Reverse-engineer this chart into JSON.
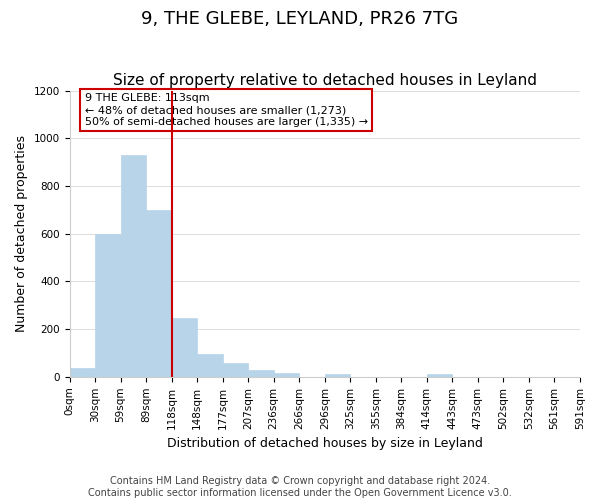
{
  "title": "9, THE GLEBE, LEYLAND, PR26 7TG",
  "subtitle": "Size of property relative to detached houses in Leyland",
  "xlabel": "Distribution of detached houses by size in Leyland",
  "ylabel": "Number of detached properties",
  "bin_labels": [
    "0sqm",
    "30sqm",
    "59sqm",
    "89sqm",
    "118sqm",
    "148sqm",
    "177sqm",
    "207sqm",
    "236sqm",
    "266sqm",
    "296sqm",
    "325sqm",
    "355sqm",
    "384sqm",
    "414sqm",
    "443sqm",
    "473sqm",
    "502sqm",
    "532sqm",
    "561sqm",
    "591sqm"
  ],
  "bar_heights": [
    37,
    597,
    928,
    700,
    248,
    97,
    57,
    30,
    18,
    0,
    10,
    0,
    0,
    0,
    12,
    0,
    0,
    0,
    0,
    0
  ],
  "bar_color": "#b8d4e8",
  "bar_edge_color": "#b8d4e8",
  "vline_color": "#cc0000",
  "annotation_text": "9 THE GLEBE: 113sqm\n← 48% of detached houses are smaller (1,273)\n50% of semi-detached houses are larger (1,335) →",
  "annotation_box_color": "#ffffff",
  "annotation_box_edge": "#cc0000",
  "ylim": [
    0,
    1200
  ],
  "yticks": [
    0,
    200,
    400,
    600,
    800,
    1000,
    1200
  ],
  "footer_line1": "Contains HM Land Registry data © Crown copyright and database right 2024.",
  "footer_line2": "Contains public sector information licensed under the Open Government Licence v3.0.",
  "bg_color": "#ffffff",
  "grid_color": "#dddddd",
  "title_fontsize": 13,
  "subtitle_fontsize": 11,
  "label_fontsize": 9,
  "tick_fontsize": 7.5,
  "footer_fontsize": 7
}
